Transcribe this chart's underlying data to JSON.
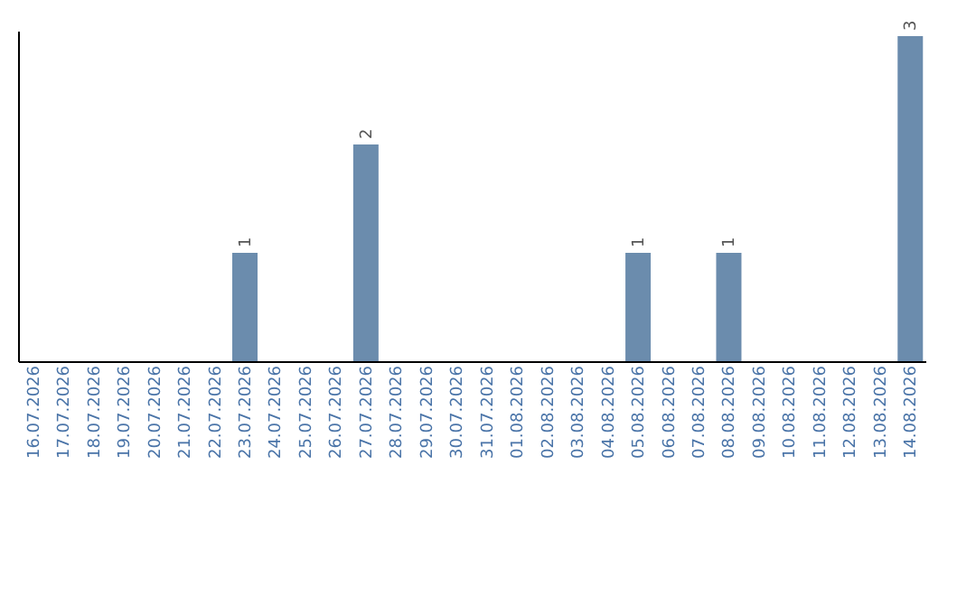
{
  "chart_data": {
    "type": "bar",
    "categories": [
      "16.07.2026",
      "17.07.2026",
      "18.07.2026",
      "19.07.2026",
      "20.07.2026",
      "21.07.2026",
      "22.07.2026",
      "23.07.2026",
      "24.07.2026",
      "25.07.2026",
      "26.07.2026",
      "27.07.2026",
      "28.07.2026",
      "29.07.2026",
      "30.07.2026",
      "31.07.2026",
      "01.08.2026",
      "02.08.2026",
      "03.08.2026",
      "04.08.2026",
      "05.08.2026",
      "06.08.2026",
      "07.08.2026",
      "08.08.2026",
      "09.08.2026",
      "10.08.2026",
      "11.08.2026",
      "12.08.2026",
      "13.08.2026",
      "14.08.2026"
    ],
    "values": [
      0,
      0,
      0,
      0,
      0,
      0,
      0,
      1,
      0,
      0,
      0,
      2,
      0,
      0,
      0,
      0,
      0,
      0,
      0,
      0,
      1,
      0,
      0,
      1,
      0,
      0,
      0,
      0,
      0,
      3
    ],
    "value_labels": [
      null,
      null,
      null,
      null,
      null,
      null,
      null,
      "1",
      null,
      null,
      null,
      "2",
      null,
      null,
      null,
      null,
      null,
      null,
      null,
      null,
      "1",
      null,
      null,
      "1",
      null,
      null,
      null,
      null,
      null,
      "3"
    ],
    "color": "#6b8cad",
    "ylim": [
      0,
      3.05
    ],
    "grid": false,
    "tick_labels": "x"
  }
}
